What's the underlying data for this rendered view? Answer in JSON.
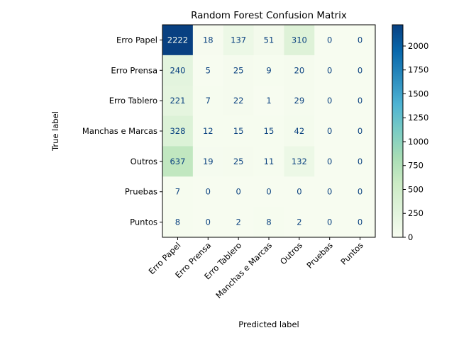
{
  "chart_data": {
    "type": "heatmap",
    "title": "Random Forest Confusion Matrix",
    "xlabel": "Predicted label",
    "ylabel": "True label",
    "row_labels": [
      "Erro Papel",
      "Erro Prensa",
      "Erro Tablero",
      "Manchas e Marcas",
      "Outros",
      "Pruebas",
      "Puntos"
    ],
    "col_labels": [
      "Erro Papel",
      "Erro Prensa",
      "Erro Tablero",
      "Manchas e Marcas",
      "Outros",
      "Pruebas",
      "Puntos"
    ],
    "values": [
      [
        2222,
        18,
        137,
        51,
        310,
        0,
        0
      ],
      [
        240,
        5,
        25,
        9,
        20,
        0,
        0
      ],
      [
        221,
        7,
        22,
        1,
        29,
        0,
        0
      ],
      [
        328,
        12,
        15,
        15,
        42,
        0,
        0
      ],
      [
        637,
        19,
        25,
        11,
        132,
        0,
        0
      ],
      [
        7,
        0,
        0,
        0,
        0,
        0,
        0
      ],
      [
        8,
        0,
        2,
        8,
        2,
        0,
        0
      ]
    ],
    "colormap": "GnBu",
    "colorbar": {
      "range": [
        0,
        2222
      ],
      "ticks": [
        0,
        250,
        500,
        750,
        1000,
        1250,
        1500,
        1750,
        2000
      ]
    }
  }
}
